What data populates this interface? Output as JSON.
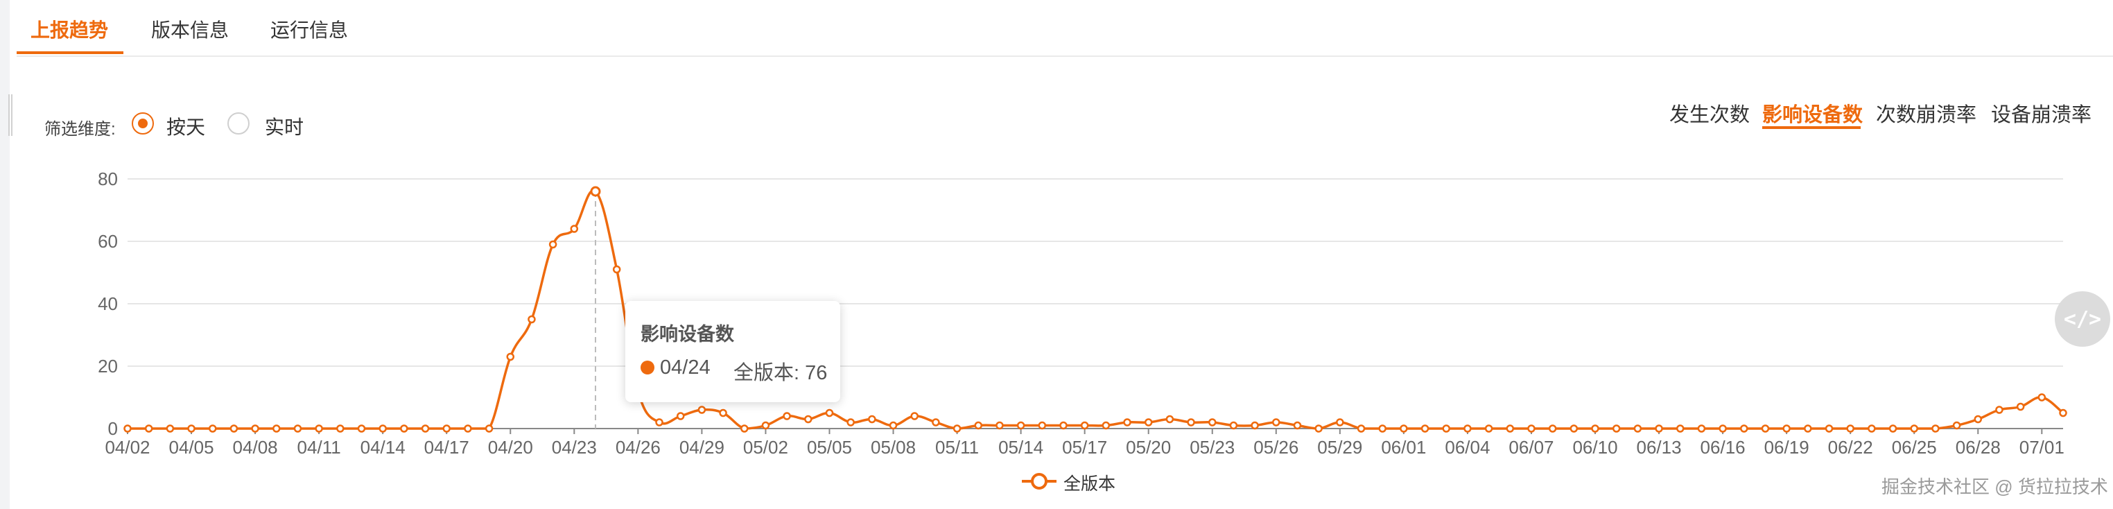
{
  "tabs": [
    {
      "label": "上报趋势",
      "active": true
    },
    {
      "label": "版本信息",
      "active": false
    },
    {
      "label": "运行信息",
      "active": false
    }
  ],
  "filter": {
    "label": "筛选维度:",
    "options": [
      {
        "label": "按天",
        "selected": true
      },
      {
        "label": "实时",
        "selected": false
      }
    ]
  },
  "metrics": [
    {
      "label": "发生次数",
      "active": false
    },
    {
      "label": "影响设备数",
      "active": true
    },
    {
      "label": "次数崩溃率",
      "active": false
    },
    {
      "label": "设备崩溃率",
      "active": false
    }
  ],
  "tooltip": {
    "title": "影响设备数",
    "date": "04/24",
    "series_label": "全版本: 76"
  },
  "legend": {
    "label": "全版本"
  },
  "watermark": "掘金技术社区 @ 货拉拉技术",
  "code_icon_glyph": "</>",
  "colors": {
    "accent": "#ee6a0e",
    "grid": "#e6e6e6",
    "axis": "#666666"
  },
  "chart_data": {
    "type": "line",
    "title": "",
    "xlabel": "",
    "ylabel": "",
    "ylim": [
      0,
      80
    ],
    "yticks": [
      0,
      20,
      40,
      60,
      80
    ],
    "x_tick_labels": [
      "04/02",
      "04/05",
      "04/08",
      "04/11",
      "04/14",
      "04/17",
      "04/20",
      "04/23",
      "04/26",
      "04/29",
      "05/02",
      "05/05",
      "05/08",
      "05/11",
      "05/14",
      "05/17",
      "05/20",
      "05/23",
      "05/26",
      "05/29",
      "06/01",
      "06/04",
      "06/07",
      "06/10",
      "06/13",
      "06/16",
      "06/19",
      "06/22",
      "06/25",
      "06/28",
      "07/01"
    ],
    "start_date": "04/02",
    "series": [
      {
        "name": "全版本",
        "values": [
          0,
          0,
          0,
          0,
          0,
          0,
          0,
          0,
          0,
          0,
          0,
          0,
          0,
          0,
          0,
          0,
          0,
          0,
          23,
          35,
          59,
          64,
          76,
          51,
          12,
          2,
          4,
          6,
          5,
          0,
          1,
          4,
          3,
          5,
          2,
          3,
          1,
          4,
          2,
          0,
          1,
          1,
          1,
          1,
          1,
          1,
          1,
          2,
          2,
          3,
          2,
          2,
          1,
          1,
          2,
          1,
          0,
          2,
          0,
          0,
          0,
          0,
          0,
          0,
          0,
          0,
          0,
          0,
          0,
          0,
          0,
          0,
          0,
          0,
          0,
          0,
          0,
          0,
          0,
          0,
          0,
          0,
          0,
          0,
          0,
          0,
          1,
          3,
          6,
          7,
          10,
          5
        ]
      }
    ]
  }
}
